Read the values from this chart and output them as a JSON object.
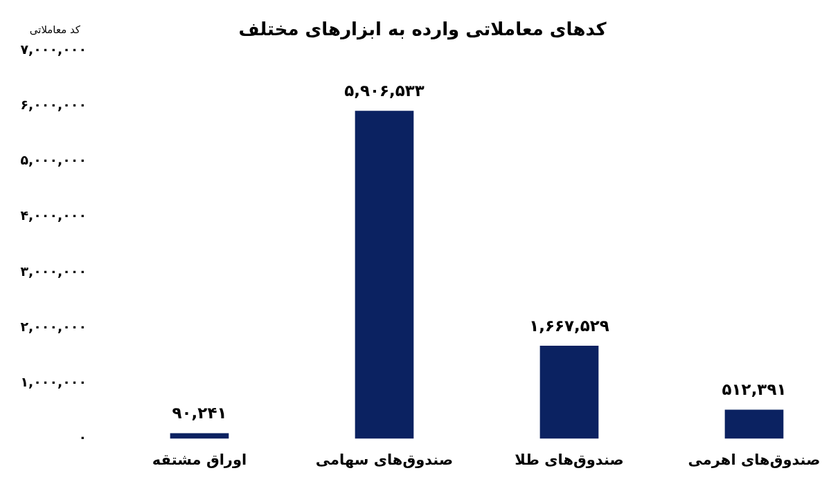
{
  "chart_data": {
    "type": "bar",
    "title": "کدهای معاملاتی وارده به ابزارهای مختلف",
    "ylabel": "کد معاملاتی",
    "categories": [
      "اوراق مشتقه",
      "صندوق‌های سهامی",
      "صندوق‌های طلا",
      "صندوق‌های اهرمی"
    ],
    "values": [
      90241,
      5906533,
      1667529,
      512391
    ],
    "color": "#0b2261",
    "value_labels": [
      "۹۰,۲۴۱",
      "۵,۹۰۶,۵۳۳",
      "۱,۶۶۷,۵۲۹",
      "۵۱۲,۳۹۱"
    ],
    "ylim": [
      0,
      7000000
    ],
    "yticks": [
      {
        "value": 0,
        "label": "۰"
      },
      {
        "value": 1000000,
        "label": "۱,۰۰۰,۰۰۰"
      },
      {
        "value": 2000000,
        "label": "۲,۰۰۰,۰۰۰"
      },
      {
        "value": 3000000,
        "label": "۳,۰۰۰,۰۰۰"
      },
      {
        "value": 4000000,
        "label": "۴,۰۰۰,۰۰۰"
      },
      {
        "value": 5000000,
        "label": "۵,۰۰۰,۰۰۰"
      },
      {
        "value": 6000000,
        "label": "۶,۰۰۰,۰۰۰"
      },
      {
        "value": 7000000,
        "label": "۷,۰۰۰,۰۰۰"
      }
    ]
  }
}
